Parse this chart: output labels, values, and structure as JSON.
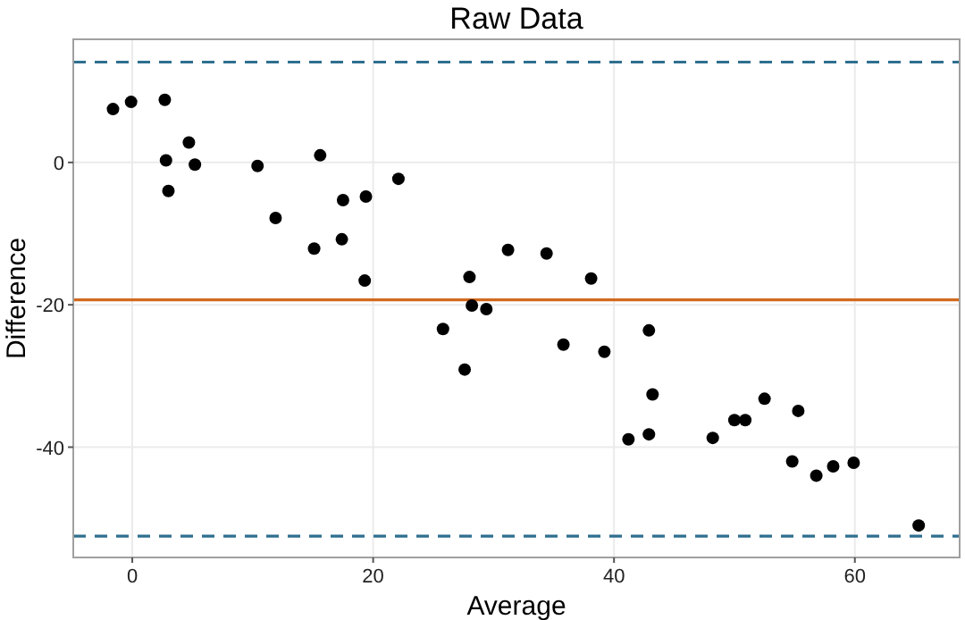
{
  "chart_data": {
    "type": "scatter",
    "title": "Raw Data",
    "xlabel": "Average",
    "ylabel": "Difference",
    "xlim": [
      -4.9,
      68.7
    ],
    "ylim": [
      -55.5,
      17.3
    ],
    "xticks": [
      0,
      20,
      40,
      60
    ],
    "yticks": [
      -40,
      -20,
      0
    ],
    "grid": true,
    "marker": "circle",
    "series": [
      {
        "color": "#000000",
        "x": [
          -1.6,
          -0.1,
          2.7,
          2.8,
          3.0,
          4.7,
          5.2,
          10.4,
          11.9,
          15.1,
          15.6,
          17.5,
          17.4,
          19.4,
          19.3,
          22.1,
          25.8,
          28.0,
          28.2,
          29.4,
          27.6,
          31.2,
          34.4,
          35.8,
          38.1,
          39.2,
          41.2,
          42.9,
          42.9,
          43.2,
          48.2,
          50.0,
          50.9,
          52.5,
          54.8,
          55.3,
          56.8,
          58.2,
          59.9,
          65.3
        ],
        "values": [
          7.5,
          8.5,
          8.8,
          0.3,
          -4.0,
          2.8,
          -0.3,
          -0.5,
          -7.8,
          -12.1,
          1.0,
          -5.3,
          -10.8,
          -4.8,
          -16.6,
          -2.3,
          -23.4,
          -16.1,
          -20.1,
          -20.6,
          -29.1,
          -12.3,
          -12.8,
          -25.6,
          -16.3,
          -26.6,
          -38.9,
          -38.2,
          -23.6,
          -32.6,
          -38.7,
          -36.2,
          -36.2,
          -33.2,
          -42.0,
          -34.9,
          -44.0,
          -42.7,
          -42.2,
          -51.0
        ]
      }
    ],
    "ref_lines": [
      {
        "axis": "y",
        "value": 14.1,
        "color": "#2f6f8f",
        "line_style": "dashed"
      },
      {
        "axis": "y",
        "value": -19.3,
        "color": "#d2691e",
        "line_style": "solid"
      },
      {
        "axis": "y",
        "value": -52.5,
        "color": "#2f6f8f",
        "line_style": "dashed"
      }
    ]
  }
}
